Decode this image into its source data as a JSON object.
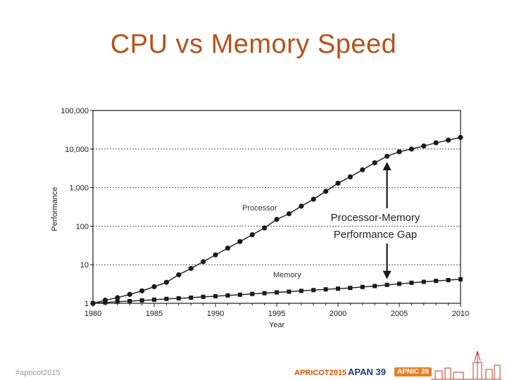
{
  "slide": {
    "title": "CPU vs Memory Speed",
    "footer_left": "#apricot2015",
    "logos": {
      "apricot": "APRICOT2015",
      "apan": "APAN 39",
      "apnic": "APNIC 39"
    }
  },
  "colors": {
    "title": "#b5521b",
    "ink": "#1a1a1a",
    "grid": "#555555"
  },
  "chart_data": {
    "type": "line",
    "xlabel": "Year",
    "ylabel": "Performance",
    "xlim": [
      1980,
      2010
    ],
    "ylim": [
      1,
      100000
    ],
    "yscale": "log",
    "x_ticks": [
      "1980",
      "1985",
      "1990",
      "1995",
      "2000",
      "2005",
      "2010"
    ],
    "y_ticks": [
      "1",
      "10",
      "100",
      "1,000",
      "10,000",
      "100,000"
    ],
    "grid": "horizontal dotted",
    "series": [
      {
        "name": "Processor",
        "marker": "circle",
        "x": [
          1980,
          1981,
          1982,
          1983,
          1984,
          1985,
          1986,
          1987,
          1988,
          1989,
          1990,
          1991,
          1992,
          1993,
          1994,
          1995,
          1996,
          1997,
          1998,
          1999,
          2000,
          2001,
          2002,
          2003,
          2004,
          2005,
          2006,
          2007,
          2008,
          2009,
          2010
        ],
        "y": [
          1,
          1.2,
          1.4,
          1.7,
          2.1,
          2.7,
          3.5,
          5.5,
          8,
          12,
          18,
          27,
          40,
          60,
          90,
          150,
          210,
          330,
          500,
          800,
          1300,
          1900,
          2900,
          4400,
          6500,
          8500,
          10000,
          12000,
          14500,
          17000,
          20000
        ]
      },
      {
        "name": "Memory",
        "marker": "square",
        "x": [
          1980,
          1981,
          1982,
          1983,
          1984,
          1985,
          1986,
          1987,
          1988,
          1989,
          1990,
          1991,
          1992,
          1993,
          1994,
          1995,
          1996,
          1997,
          1998,
          1999,
          2000,
          2001,
          2002,
          2003,
          2004,
          2005,
          2006,
          2007,
          2008,
          2009,
          2010
        ],
        "y": [
          1,
          1.05,
          1.1,
          1.14,
          1.19,
          1.24,
          1.3,
          1.35,
          1.4,
          1.47,
          1.53,
          1.6,
          1.67,
          1.75,
          1.83,
          1.92,
          2.0,
          2.1,
          2.2,
          2.3,
          2.4,
          2.5,
          2.65,
          2.8,
          3.0,
          3.2,
          3.4,
          3.6,
          3.8,
          4.0,
          4.2
        ]
      }
    ],
    "annotations": {
      "gap_label_line1": "Processor-Memory",
      "gap_label_line2": "Performance Gap",
      "gap_arrow_year": 2004,
      "processor_label": "Processor",
      "memory_label": "Memory"
    }
  }
}
